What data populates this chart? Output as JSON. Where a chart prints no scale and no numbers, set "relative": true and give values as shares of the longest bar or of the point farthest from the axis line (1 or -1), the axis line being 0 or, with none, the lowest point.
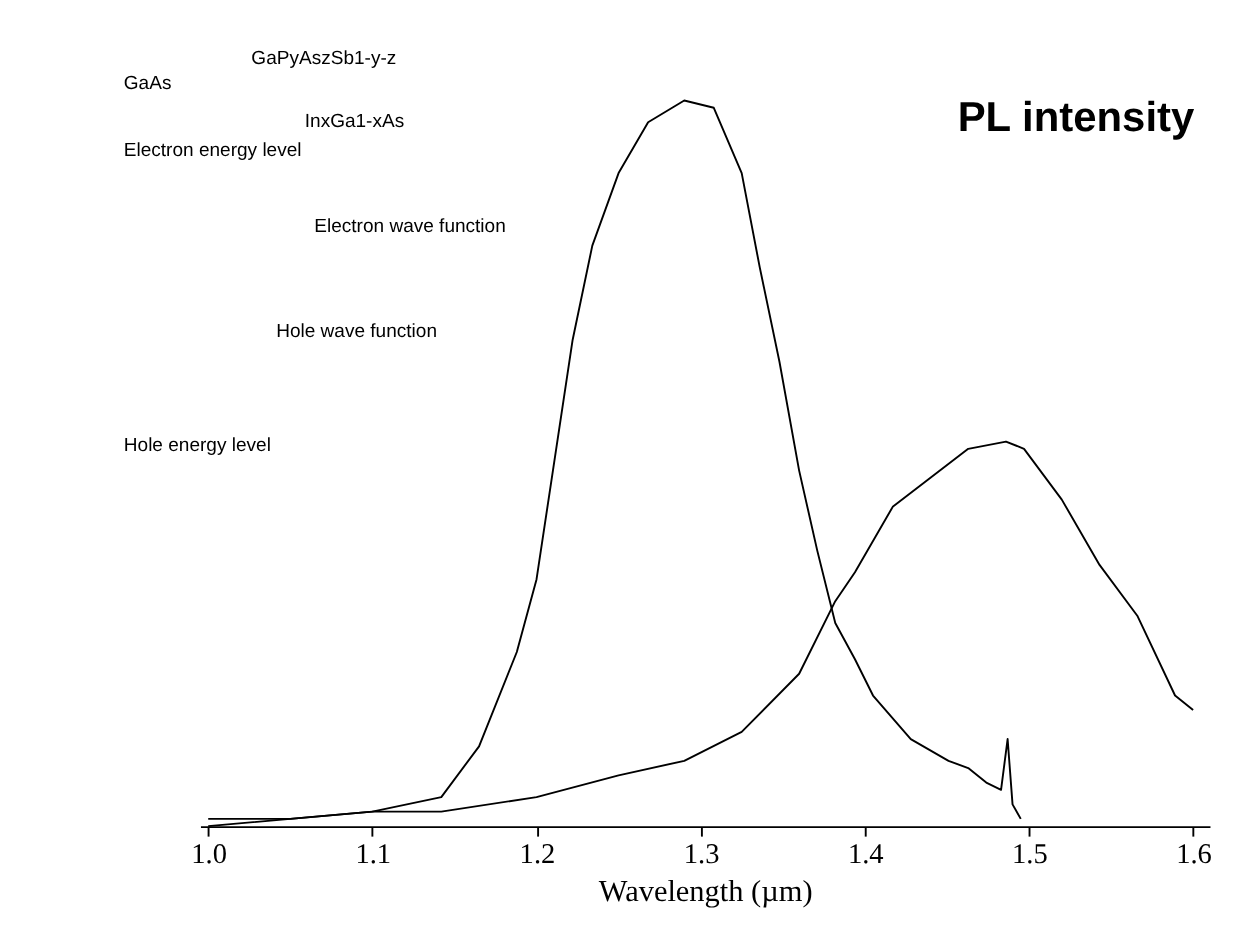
{
  "chart_data": {
    "type": "line",
    "xlabel": "Wavelength (µm)",
    "ylabel": "PL intensity",
    "relative": true,
    "xlim": [
      0.995,
      1.61
    ],
    "xticks": [
      {
        "value": 1.0,
        "label": "1.0"
      },
      1.1,
      1.2,
      1.3,
      1.4,
      1.5,
      1.6
    ],
    "grid": false,
    "series": [
      {
        "color": "#000000",
        "x": [
          1.0,
          1.05,
          1.1,
          1.142,
          1.165,
          1.188,
          1.2,
          1.21,
          1.222,
          1.234,
          1.25,
          1.268,
          1.29,
          1.308,
          1.325,
          1.336,
          1.348,
          1.36,
          1.371,
          1.382,
          1.394,
          1.405,
          1.428,
          1.451,
          1.463,
          1.474,
          1.483,
          1.487,
          1.49,
          1.495
        ],
        "values": [
          0.01,
          0.01,
          0.02,
          0.04,
          0.11,
          0.24,
          0.34,
          0.49,
          0.67,
          0.8,
          0.9,
          0.97,
          1.0,
          0.99,
          0.9,
          0.77,
          0.64,
          0.49,
          0.38,
          0.28,
          0.23,
          0.18,
          0.12,
          0.09,
          0.08,
          0.06,
          0.05,
          0.12,
          0.03,
          0.01
        ]
      },
      {
        "color": "#000000",
        "x": [
          1.0,
          1.05,
          1.1,
          1.142,
          1.2,
          1.25,
          1.29,
          1.325,
          1.36,
          1.382,
          1.394,
          1.417,
          1.44,
          1.463,
          1.486,
          1.497,
          1.52,
          1.543,
          1.566,
          1.589,
          1.6
        ],
        "values": [
          0.0,
          0.01,
          0.02,
          0.02,
          0.04,
          0.07,
          0.09,
          0.13,
          0.21,
          0.31,
          0.35,
          0.44,
          0.48,
          0.52,
          0.53,
          0.52,
          0.45,
          0.36,
          0.29,
          0.18,
          0.16
        ]
      }
    ],
    "annotations": [
      "GaAs",
      "GaPyAszSb1-y-z",
      "InxGa1-xAs",
      "Electron energy level",
      "Electron wave function",
      "Hole wave function",
      "Hole energy level"
    ]
  }
}
